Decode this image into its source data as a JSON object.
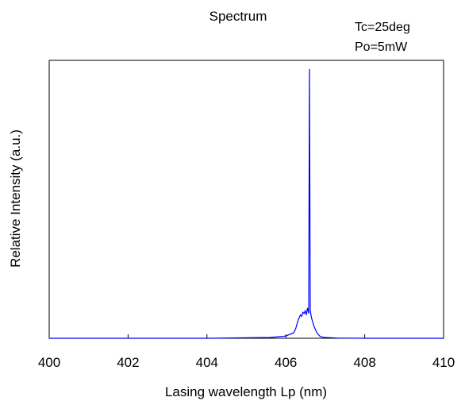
{
  "chart_data": {
    "type": "line",
    "title": "Spectrum",
    "annotations": [
      "Tc=25deg",
      "Po=5mW"
    ],
    "xlabel": "Lasing wavelength Lp (nm)",
    "ylabel": "Relative Intensity (a.u.)",
    "xlim": [
      400,
      410
    ],
    "ylim": [
      0,
      1.0
    ],
    "x_ticks": [
      400,
      402,
      404,
      406,
      408,
      410
    ],
    "y_tick_labels_shown": false,
    "grid": false,
    "line_color": "#0000ff",
    "series": [
      {
        "x": [
          400.0,
          402.0,
          404.0,
          405.6,
          406.0,
          406.2,
          406.25,
          406.28,
          406.31,
          406.34,
          406.37,
          406.4,
          406.43,
          406.46,
          406.49,
          406.52,
          406.55,
          406.58,
          406.6,
          406.62,
          406.65,
          406.68,
          406.71,
          406.74,
          406.77,
          406.8,
          406.83,
          406.86,
          406.9,
          407.0,
          407.3,
          408.0,
          410.0
        ],
        "y": [
          0.0,
          0.0,
          0.0,
          0.003,
          0.008,
          0.02,
          0.035,
          0.05,
          0.065,
          0.075,
          0.085,
          0.08,
          0.095,
          0.09,
          0.1,
          0.085,
          0.11,
          0.09,
          0.98,
          0.1,
          0.075,
          0.06,
          0.045,
          0.035,
          0.025,
          0.018,
          0.012,
          0.008,
          0.005,
          0.003,
          0.001,
          0.0,
          0.0
        ]
      }
    ]
  }
}
